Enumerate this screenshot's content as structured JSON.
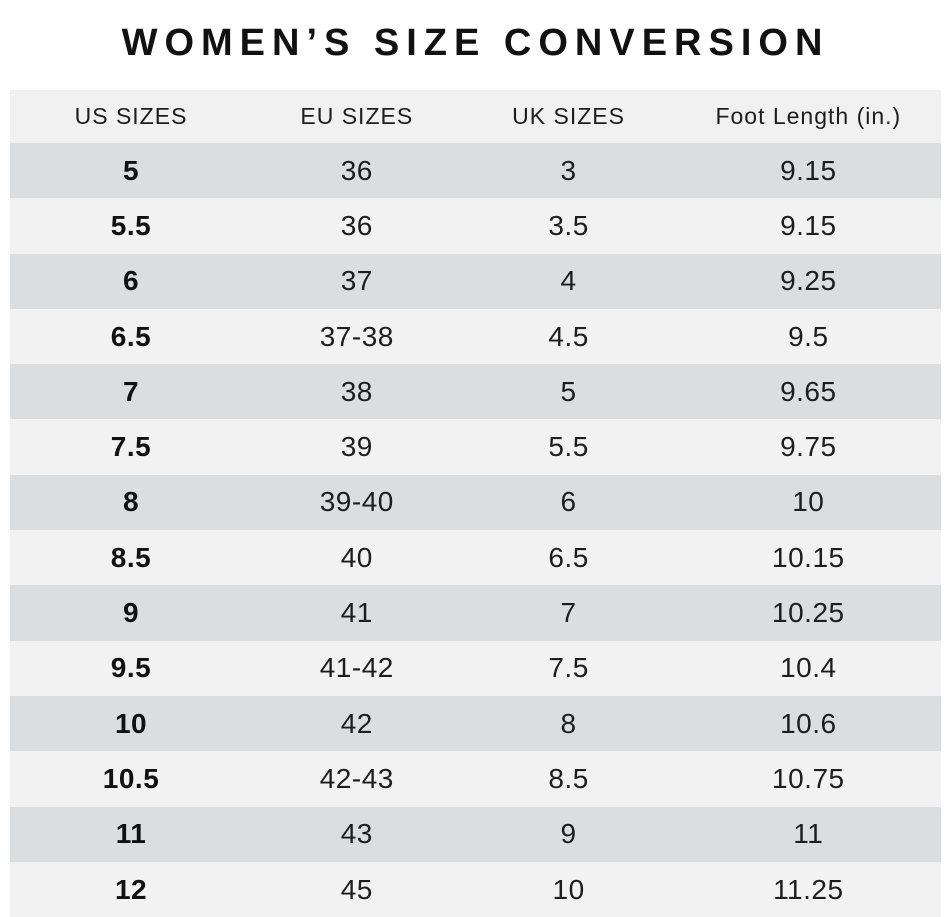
{
  "chart_data": {
    "type": "table",
    "title": "WOMEN’S SIZE CONVERSION",
    "columns": [
      "US SIZES",
      "EU SIZES",
      "UK SIZES",
      "Foot Length (in.)"
    ],
    "rows": [
      [
        "5",
        "36",
        "3",
        "9.15"
      ],
      [
        "5.5",
        "36",
        "3.5",
        "9.15"
      ],
      [
        "6",
        "37",
        "4",
        "9.25"
      ],
      [
        "6.5",
        "37-38",
        "4.5",
        "9.5"
      ],
      [
        "7",
        "38",
        "5",
        "9.65"
      ],
      [
        "7.5",
        "39",
        "5.5",
        "9.75"
      ],
      [
        "8",
        "39-40",
        "6",
        "10"
      ],
      [
        "8.5",
        "40",
        "6.5",
        "10.15"
      ],
      [
        "9",
        "41",
        "7",
        "10.25"
      ],
      [
        "9.5",
        "41-42",
        "7.5",
        "10.4"
      ],
      [
        "10",
        "42",
        "8",
        "10.6"
      ],
      [
        "10.5",
        "42-43",
        "8.5",
        "10.75"
      ],
      [
        "11",
        "43",
        "9",
        "11"
      ],
      [
        "12",
        "45",
        "10",
        "11.25"
      ]
    ],
    "layout": {
      "first_row_shade": "dark",
      "row_alternation": [
        "dark",
        "light"
      ]
    }
  },
  "colors": {
    "background": "#ffffff",
    "header_bg": "#f1f1f1",
    "row_dark": "#dcddde",
    "row_light": "#f2f2f2",
    "text": "#1d1d1d",
    "text_strong": "#111111"
  }
}
